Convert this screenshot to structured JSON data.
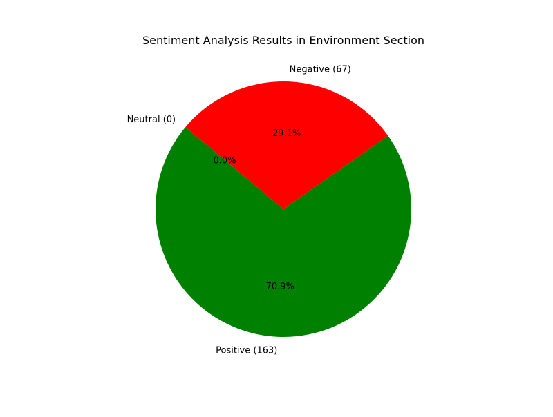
{
  "chart_data": {
    "type": "pie",
    "title": "Sentiment Analysis Results in Environment Section",
    "labels": [
      "Positive (163)",
      "Negative (67)",
      "Neutral (0)"
    ],
    "values": [
      163,
      67,
      0
    ],
    "percent_labels": [
      "70.9%",
      "29.1%",
      "0.0%"
    ],
    "colors": [
      "#008000",
      "#ff0000",
      "#0000ff"
    ],
    "start_angle_deg": 140,
    "direction": "counterclockwise",
    "legend": "none"
  }
}
